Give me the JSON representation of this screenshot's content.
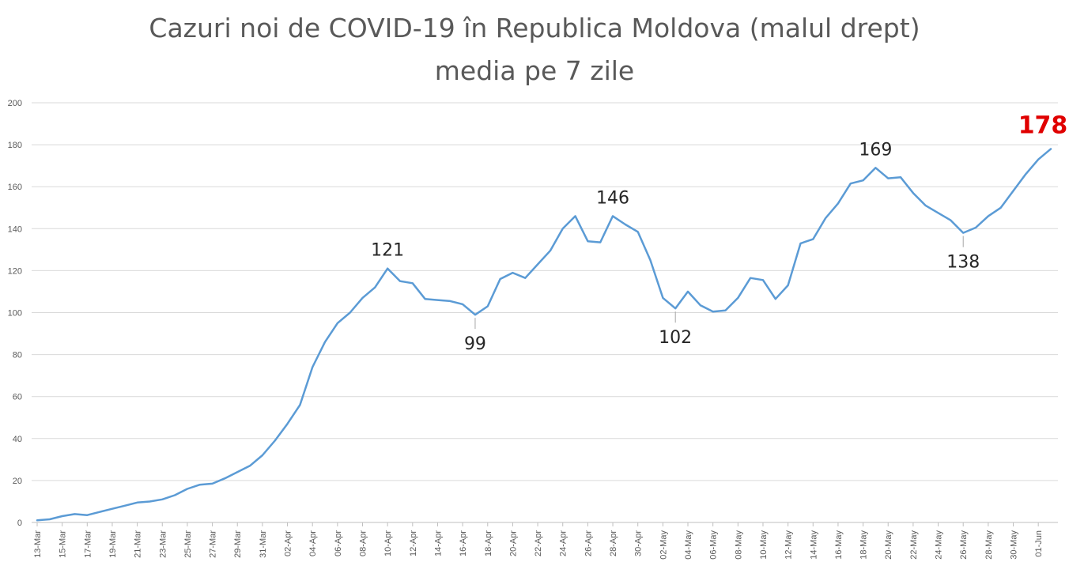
{
  "chart_data": {
    "type": "line",
    "title": "Cazuri noi de COVID-19 în Republica Moldova (malul drept)",
    "subtitle": "media pe 7 zile",
    "xlabel": "",
    "ylabel": "",
    "ylim": [
      0,
      200
    ],
    "yticks": [
      0,
      20,
      40,
      60,
      80,
      100,
      120,
      140,
      160,
      180,
      200
    ],
    "grid": true,
    "legend": "none",
    "line_color": "#5b9bd5",
    "highlight_color": "#e00000",
    "x": [
      "13-Mar",
      "14-Mar",
      "15-Mar",
      "16-Mar",
      "17-Mar",
      "18-Mar",
      "19-Mar",
      "20-Mar",
      "21-Mar",
      "22-Mar",
      "23-Mar",
      "24-Mar",
      "25-Mar",
      "26-Mar",
      "27-Mar",
      "28-Mar",
      "29-Mar",
      "30-Mar",
      "31-Mar",
      "01-Apr",
      "02-Apr",
      "03-Apr",
      "04-Apr",
      "05-Apr",
      "06-Apr",
      "07-Apr",
      "08-Apr",
      "09-Apr",
      "10-Apr",
      "11-Apr",
      "12-Apr",
      "13-Apr",
      "14-Apr",
      "15-Apr",
      "16-Apr",
      "17-Apr",
      "18-Apr",
      "19-Apr",
      "20-Apr",
      "21-Apr",
      "22-Apr",
      "23-Apr",
      "24-Apr",
      "25-Apr",
      "26-Apr",
      "27-Apr",
      "28-Apr",
      "29-Apr",
      "30-Apr",
      "01-May",
      "02-May",
      "03-May",
      "04-May",
      "05-May",
      "06-May",
      "07-May",
      "08-May",
      "09-May",
      "10-May",
      "11-May",
      "12-May",
      "13-May",
      "14-May",
      "15-May",
      "16-May",
      "17-May",
      "18-May",
      "19-May",
      "20-May",
      "21-May",
      "22-May",
      "23-May",
      "24-May",
      "25-May",
      "26-May",
      "27-May",
      "28-May",
      "29-May",
      "30-May",
      "31-May",
      "01-Jun",
      "02-Jun"
    ],
    "xtick_labels": [
      "13-Mar",
      "15-Mar",
      "17-Mar",
      "19-Mar",
      "21-Mar",
      "23-Mar",
      "25-Mar",
      "27-Mar",
      "29-Mar",
      "31-Mar",
      "02-Apr",
      "04-Apr",
      "06-Apr",
      "08-Apr",
      "10-Apr",
      "12-Apr",
      "14-Apr",
      "16-Apr",
      "18-Apr",
      "20-Apr",
      "22-Apr",
      "24-Apr",
      "26-Apr",
      "28-Apr",
      "30-Apr",
      "02-May",
      "04-May",
      "06-May",
      "08-May",
      "10-May",
      "12-May",
      "14-May",
      "16-May",
      "18-May",
      "20-May",
      "22-May",
      "24-May",
      "26-May",
      "28-May",
      "30-May",
      "01-Jun"
    ],
    "series": [
      {
        "name": "",
        "values": [
          1,
          1.5,
          3,
          4,
          3.5,
          5,
          6.5,
          8,
          9.5,
          10,
          11,
          13,
          16,
          18,
          18.5,
          21,
          24,
          27,
          32,
          39,
          47,
          56,
          74,
          86,
          95,
          100,
          107,
          112,
          121,
          115,
          114,
          106.5,
          106,
          105.5,
          104,
          99,
          103,
          116,
          119,
          116.5,
          123,
          129.5,
          140,
          146,
          134,
          133.5,
          146,
          142,
          138.5,
          125,
          107,
          102,
          110,
          103.5,
          100.5,
          101,
          107,
          116.5,
          115.5,
          106.5,
          113,
          133,
          135,
          145,
          152,
          161.5,
          163,
          169,
          164,
          164.5,
          157,
          151,
          147.5,
          144,
          138,
          140.5,
          146,
          150,
          158,
          166,
          173,
          178
        ]
      }
    ],
    "annotations": [
      {
        "label": "121",
        "x": "10-Apr",
        "value": 121
      },
      {
        "label": "99",
        "x": "17-Apr",
        "value": 99
      },
      {
        "label": "146",
        "x": "28-Apr",
        "value": 146
      },
      {
        "label": "102",
        "x": "03-May",
        "value": 102
      },
      {
        "label": "169",
        "x": "19-May",
        "value": 169
      },
      {
        "label": "138",
        "x": "26-May",
        "value": 138
      },
      {
        "label": "178",
        "x": "02-Jun",
        "value": 178,
        "highlight": true
      }
    ]
  }
}
